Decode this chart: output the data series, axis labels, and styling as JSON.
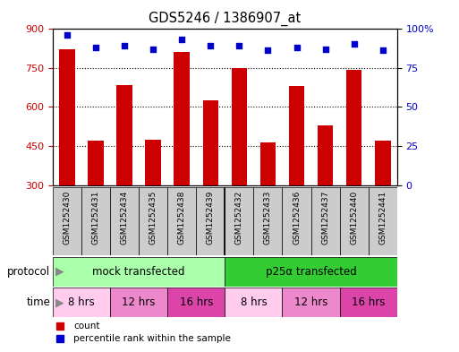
{
  "title": "GDS5246 / 1386907_at",
  "samples": [
    "GSM1252430",
    "GSM1252431",
    "GSM1252434",
    "GSM1252435",
    "GSM1252438",
    "GSM1252439",
    "GSM1252432",
    "GSM1252433",
    "GSM1252436",
    "GSM1252437",
    "GSM1252440",
    "GSM1252441"
  ],
  "counts": [
    820,
    470,
    685,
    475,
    810,
    625,
    748,
    462,
    680,
    530,
    740,
    472
  ],
  "percentiles": [
    96,
    88,
    89,
    87,
    93,
    89,
    89,
    86,
    88,
    87,
    90,
    86
  ],
  "ylim_left": [
    300,
    900
  ],
  "ylim_right": [
    0,
    100
  ],
  "yticks_left": [
    300,
    450,
    600,
    750,
    900
  ],
  "yticks_right": [
    0,
    25,
    50,
    75,
    100
  ],
  "bar_color": "#CC0000",
  "dot_color": "#0000CC",
  "protocol_groups": [
    {
      "label": "mock transfected",
      "start": 0,
      "end": 6,
      "color": "#AAFFAA"
    },
    {
      "label": "p25α transfected",
      "start": 6,
      "end": 12,
      "color": "#33CC33"
    }
  ],
  "time_groups": [
    {
      "label": "8 hrs",
      "start": 0,
      "end": 2,
      "color": "#FFCCEE"
    },
    {
      "label": "12 hrs",
      "start": 2,
      "end": 4,
      "color": "#EE88CC"
    },
    {
      "label": "16 hrs",
      "start": 4,
      "end": 6,
      "color": "#DD44AA"
    },
    {
      "label": "8 hrs",
      "start": 6,
      "end": 8,
      "color": "#FFCCEE"
    },
    {
      "label": "12 hrs",
      "start": 8,
      "end": 10,
      "color": "#EE88CC"
    },
    {
      "label": "16 hrs",
      "start": 10,
      "end": 12,
      "color": "#DD44AA"
    }
  ],
  "protocol_label": "protocol",
  "time_label": "time",
  "legend_items": [
    {
      "label": "count",
      "color": "#CC0000"
    },
    {
      "label": "percentile rank within the sample",
      "color": "#0000CC"
    }
  ],
  "fig_width": 5.13,
  "fig_height": 3.93,
  "dpi": 100
}
